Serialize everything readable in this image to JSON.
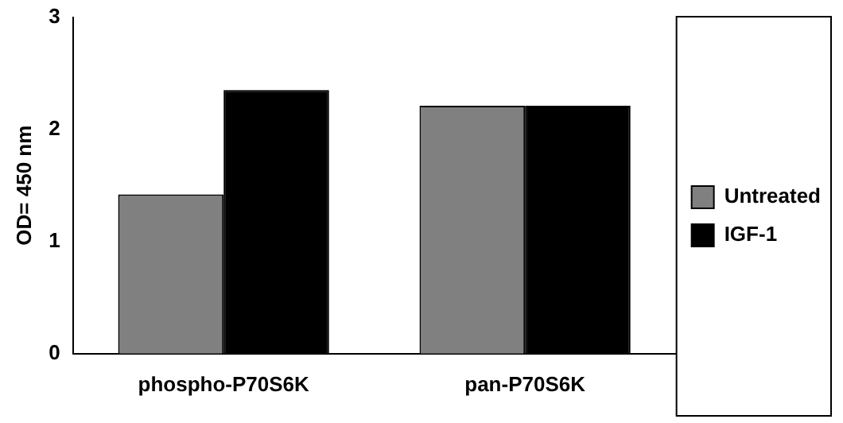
{
  "chart_data": {
    "type": "bar",
    "ylabel": "OD= 450 nm",
    "categories": [
      "phospho-P70S6K",
      "pan-P70S6K"
    ],
    "series": [
      {
        "name": "Untreated",
        "color": "#808080",
        "values": [
          1.42,
          2.21
        ]
      },
      {
        "name": "IGF-1",
        "color": "#000000",
        "values": [
          2.35,
          2.21
        ]
      }
    ],
    "ylim": [
      0,
      3
    ],
    "yticks": [
      0,
      1,
      2,
      3
    ],
    "grid": false,
    "legend": "right"
  }
}
